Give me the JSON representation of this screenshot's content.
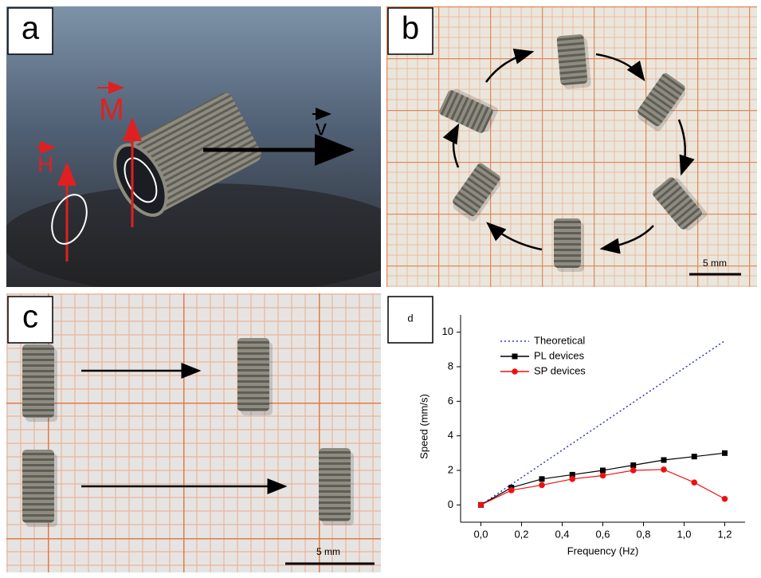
{
  "panels": [
    {
      "label": "a",
      "annotations": [
        "M",
        "H",
        "v"
      ]
    },
    {
      "label": "b",
      "scale_bar": "5 mm"
    },
    {
      "label": "c",
      "scale_bar": "5 mm"
    },
    {
      "label": "d"
    }
  ],
  "chart_data": {
    "type": "line",
    "x_label": "Frequency (Hz)",
    "y_label": "Speed (mm/s)",
    "xlim": [
      -0.1,
      1.3
    ],
    "ylim": [
      -1,
      11
    ],
    "xticks": [
      {
        "value": 0,
        "label": "0,0"
      },
      {
        "value": 0.2,
        "label": "0,2"
      },
      {
        "value": 0.4,
        "label": "0,4"
      },
      {
        "value": 0.6,
        "label": "0,6"
      },
      {
        "value": 0.8,
        "label": "0,8"
      },
      {
        "value": 1.0,
        "label": "1,0"
      },
      {
        "value": 1.2,
        "label": "1,2"
      }
    ],
    "yticks": [
      0,
      2,
      4,
      6,
      8,
      10
    ],
    "legend": "upper left",
    "series": [
      {
        "name": "Theoretical",
        "color": "#3333cc",
        "line_style": "dotted",
        "marker": "none",
        "x": [
          0,
          1.2
        ],
        "values": [
          0,
          9.5
        ]
      },
      {
        "name": "PL devices",
        "color": "#000000",
        "line_style": "solid",
        "marker": "square",
        "x": [
          0,
          0.15,
          0.3,
          0.45,
          0.6,
          0.75,
          0.9,
          1.05,
          1.2
        ],
        "values": [
          0,
          1.0,
          1.5,
          1.75,
          2.0,
          2.3,
          2.6,
          2.8,
          3.0
        ]
      },
      {
        "name": "SP devices",
        "color": "#ee1111",
        "line_style": "solid",
        "marker": "circle",
        "x": [
          0,
          0.15,
          0.3,
          0.45,
          0.6,
          0.75,
          0.9,
          1.05,
          1.2
        ],
        "values": [
          0,
          0.85,
          1.15,
          1.5,
          1.7,
          2.0,
          2.05,
          1.3,
          0.35
        ]
      }
    ]
  }
}
